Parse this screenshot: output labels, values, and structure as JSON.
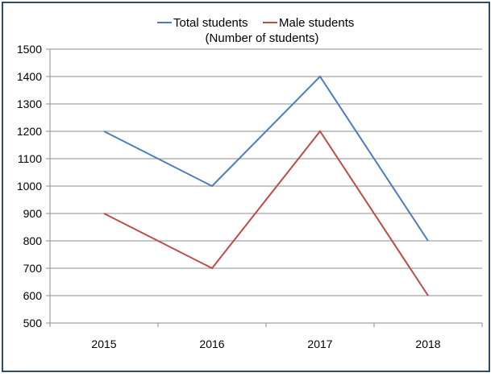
{
  "chart_data": {
    "type": "line",
    "title": "",
    "subtitle": "(Number  of students)",
    "xlabel": "",
    "ylabel": "",
    "categories": [
      "2015",
      "2016",
      "2017",
      "2018"
    ],
    "ylim": [
      500,
      1500
    ],
    "yticks": [
      500,
      600,
      700,
      800,
      900,
      1000,
      1100,
      1200,
      1300,
      1400,
      1500
    ],
    "grid": true,
    "legend_position": "top",
    "series": [
      {
        "name": "Total students",
        "color": "#4a7ebb",
        "values": [
          1200,
          1000,
          1400,
          800
        ]
      },
      {
        "name": "Male students",
        "color": "#be4b48",
        "values": [
          900,
          700,
          1200,
          600
        ]
      }
    ]
  }
}
